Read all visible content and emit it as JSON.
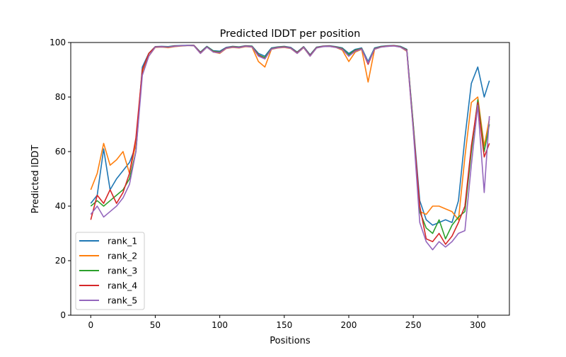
{
  "chart_data": {
    "type": "line",
    "title": "Predicted lDDT per position",
    "xlabel": "Positions",
    "ylabel": "Predicted lDDT",
    "xlim": [
      -15.5,
      324.5
    ],
    "ylim": [
      0,
      100
    ],
    "xticks": [
      0,
      50,
      100,
      150,
      200,
      250,
      300
    ],
    "yticks": [
      0,
      20,
      40,
      60,
      80,
      100
    ],
    "grid": false,
    "legend_position": "lower-left",
    "x": [
      0,
      5,
      10,
      15,
      20,
      25,
      30,
      35,
      40,
      45,
      50,
      55,
      60,
      65,
      70,
      75,
      80,
      85,
      90,
      95,
      100,
      105,
      110,
      115,
      120,
      125,
      130,
      135,
      140,
      145,
      150,
      155,
      160,
      165,
      170,
      175,
      180,
      185,
      190,
      195,
      200,
      205,
      210,
      215,
      220,
      225,
      230,
      235,
      240,
      245,
      250,
      255,
      260,
      265,
      270,
      275,
      280,
      285,
      290,
      295,
      300,
      305,
      309
    ],
    "series": [
      {
        "name": "rank_1",
        "color": "#1f77b4",
        "values": [
          41,
          44,
          61,
          46,
          50,
          53,
          56,
          62,
          91,
          96,
          98.5,
          98.6,
          98.5,
          98.8,
          98.9,
          99,
          99,
          96.5,
          98.6,
          97,
          96.8,
          98.2,
          98.6,
          98.4,
          98.8,
          98.7,
          96,
          95,
          98,
          98.4,
          98.6,
          98.2,
          96.5,
          98.5,
          95.5,
          98.3,
          98.7,
          98.8,
          98.5,
          98,
          96,
          97.5,
          98,
          93,
          98,
          98.6,
          98.8,
          98.9,
          98.6,
          97.5,
          70,
          42,
          35,
          33,
          34,
          35,
          34,
          42,
          65,
          85,
          91,
          80,
          86
        ]
      },
      {
        "name": "rank_2",
        "color": "#ff7f0e",
        "values": [
          46,
          52,
          63,
          55,
          57,
          60,
          52,
          63,
          89,
          95,
          98.2,
          98.3,
          98.1,
          98.5,
          98.7,
          98.9,
          98.8,
          96,
          98.3,
          96.5,
          96,
          97.8,
          98.2,
          98,
          98.5,
          98.3,
          93,
          91,
          97.5,
          98,
          98.2,
          97.8,
          96,
          98.1,
          95,
          98,
          98.5,
          98.6,
          98.2,
          97.2,
          93,
          96.5,
          97.5,
          85.5,
          97.5,
          98.3,
          98.6,
          98.8,
          98.3,
          96.8,
          68,
          38,
          37,
          40,
          40,
          39,
          38,
          35,
          58,
          78,
          80,
          62,
          72
        ]
      },
      {
        "name": "rank_3",
        "color": "#2ca02c",
        "values": [
          40,
          42,
          40,
          42,
          44,
          46,
          50,
          60,
          90,
          96,
          98.4,
          98.5,
          98.4,
          98.7,
          98.8,
          98.9,
          98.9,
          96.3,
          98.5,
          96.8,
          96.5,
          98,
          98.5,
          98.3,
          98.7,
          98.6,
          95.5,
          94.5,
          97.8,
          98.3,
          98.5,
          98,
          96.3,
          98.4,
          95.3,
          98.2,
          98.6,
          98.7,
          98.4,
          97.8,
          95.5,
          97.2,
          97.8,
          92.5,
          97.8,
          98.5,
          98.7,
          98.8,
          98.5,
          97.3,
          70,
          38,
          32,
          30,
          35,
          28,
          33,
          36,
          38,
          60,
          79,
          60,
          70
        ]
      },
      {
        "name": "rank_4",
        "color": "#d62728",
        "values": [
          35,
          44,
          41,
          46,
          41,
          45,
          52,
          65,
          90,
          96,
          98.4,
          98.5,
          98.3,
          98.7,
          98.8,
          98.9,
          98.9,
          96.2,
          98.4,
          96.6,
          96.3,
          98,
          98.4,
          98.2,
          98.7,
          98.5,
          95.3,
          94,
          97.7,
          98.2,
          98.4,
          98,
          96.2,
          98.3,
          95.2,
          98.1,
          98.6,
          98.7,
          98.3,
          97.6,
          95,
          97,
          97.7,
          92,
          97.7,
          98.4,
          98.7,
          98.8,
          98.4,
          97.2,
          69,
          40,
          28,
          27,
          30,
          26,
          29,
          34,
          40,
          62,
          78,
          58,
          63
        ]
      },
      {
        "name": "rank_5",
        "color": "#9467bd",
        "values": [
          37,
          40,
          36,
          38,
          40,
          43,
          48,
          60,
          88,
          95,
          98.3,
          98.4,
          98.3,
          98.6,
          98.8,
          98.9,
          98.8,
          96,
          98.3,
          96.5,
          96.2,
          97.9,
          98.3,
          98.1,
          98.6,
          98.4,
          95,
          94,
          97.6,
          98.1,
          98.3,
          97.9,
          96,
          98.2,
          95,
          98,
          98.5,
          98.6,
          98.2,
          97.5,
          95,
          96.8,
          97.6,
          92.5,
          97.6,
          98.3,
          98.6,
          98.7,
          98.3,
          97,
          68,
          34,
          27,
          24,
          27,
          25,
          27,
          30,
          31,
          55,
          77,
          45,
          73
        ]
      }
    ]
  }
}
